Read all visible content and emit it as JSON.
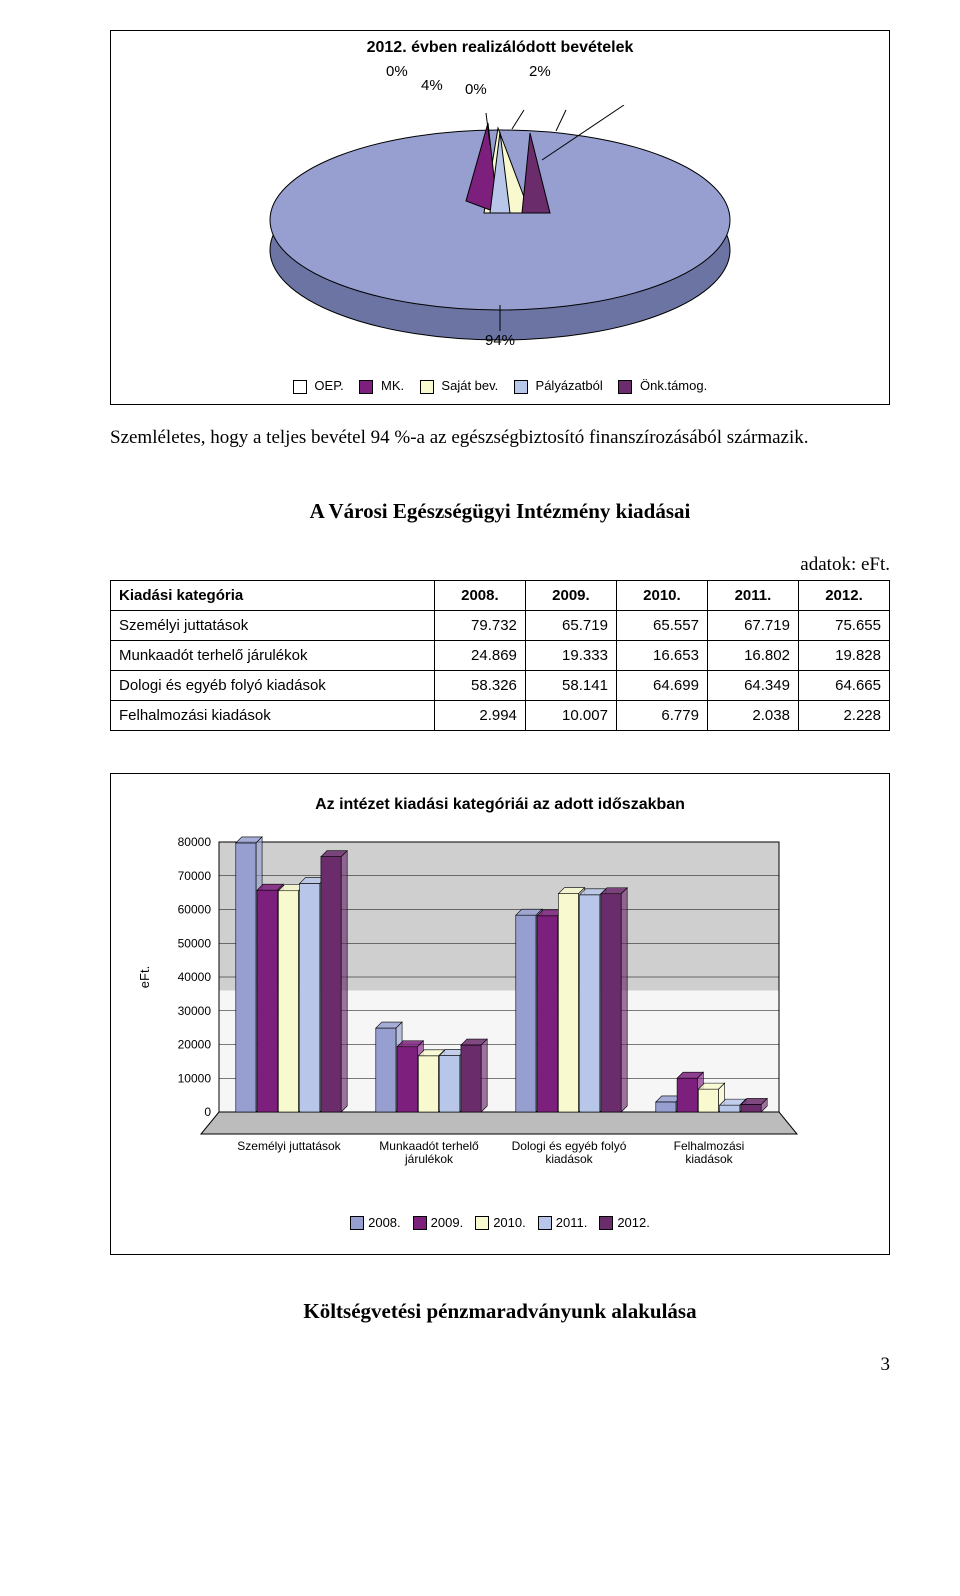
{
  "pie_chart": {
    "title": "2012. évben realizálódott bevételek",
    "type": "pie",
    "slices": [
      {
        "label": "OEP.",
        "pct": 94,
        "pct_label": "94%",
        "color": "#969fcf"
      },
      {
        "label": "MK.",
        "pct": 4,
        "pct_label": "4%",
        "color": "#7d1f7c"
      },
      {
        "label": "Saját bev.",
        "pct": 0,
        "pct_label": "0%",
        "color": "#f8f9cf"
      },
      {
        "label": "Pályázatból",
        "pct": 0,
        "pct_label": "0%",
        "color": "#b8c7e9"
      },
      {
        "label": "Önk.támog.",
        "pct": 2,
        "pct_label": "2%",
        "color": "#6a2c6b"
      }
    ],
    "title_fontsize": 16,
    "label_fontsize": 15,
    "legend_fontsize": 13,
    "border_color": "#000000",
    "plot_bg": "#c0c0c0"
  },
  "intro_para": "Szemléletes, hogy a teljes bevétel 94 %-a az egészségbiztosító finanszírozásából származik.",
  "section_title": "A Városi Egészségügyi Intézmény kiadásai",
  "table_caption": "adatok: eFt.",
  "table": {
    "columns": [
      "Kiadási kategória",
      "2008.",
      "2009.",
      "2010.",
      "2011.",
      "2012."
    ],
    "rows": [
      [
        "Személyi juttatások",
        "79.732",
        "65.719",
        "65.557",
        "67.719",
        "75.655"
      ],
      [
        "Munkaadót terhelő járulékok",
        "24.869",
        "19.333",
        "16.653",
        "16.802",
        "19.828"
      ],
      [
        "Dologi és egyéb folyó kiadások",
        "58.326",
        "58.141",
        "64.699",
        "64.349",
        "64.665"
      ],
      [
        "Felhalmozási kiadások",
        "2.994",
        "10.007",
        "6.779",
        "2.038",
        "2.228"
      ]
    ]
  },
  "bar_chart": {
    "title": "Az intézet kiadási kategóriái az adott időszakban",
    "type": "bar",
    "y_label": "eFt.",
    "ylim": [
      0,
      80000
    ],
    "ytick_step": 10000,
    "yticks": [
      "0",
      "10000",
      "20000",
      "30000",
      "40000",
      "50000",
      "60000",
      "70000",
      "80000"
    ],
    "categories": [
      "Személyi juttatások",
      "Munkaadót terhelő\njárulékok",
      "Dologi és egyéb folyó\nkiadások",
      "Felhalmozási\nkiadások"
    ],
    "series": [
      {
        "label": "2008.",
        "color": "#969fcf",
        "values": [
          79732,
          24869,
          58326,
          2994
        ]
      },
      {
        "label": "2009.",
        "color": "#7d1f7c",
        "values": [
          65719,
          19333,
          58141,
          10007
        ]
      },
      {
        "label": "2010.",
        "color": "#f8f9cf",
        "values": [
          65557,
          16653,
          64699,
          6779
        ]
      },
      {
        "label": "2011.",
        "color": "#b8c7e9",
        "values": [
          67719,
          16802,
          64349,
          2038
        ]
      },
      {
        "label": "2012.",
        "color": "#6a2c6b",
        "values": [
          75655,
          19828,
          64665,
          2228
        ]
      }
    ],
    "grid_color": "#000000",
    "plot_bg_top": "#cfcfcf",
    "plot_bg_bottom": "#f6f6f6",
    "title_fontsize": 16,
    "label_fontsize": 13
  },
  "bottom_title": "Költségvetési pénzmaradványunk alakulása",
  "page_number": "3"
}
